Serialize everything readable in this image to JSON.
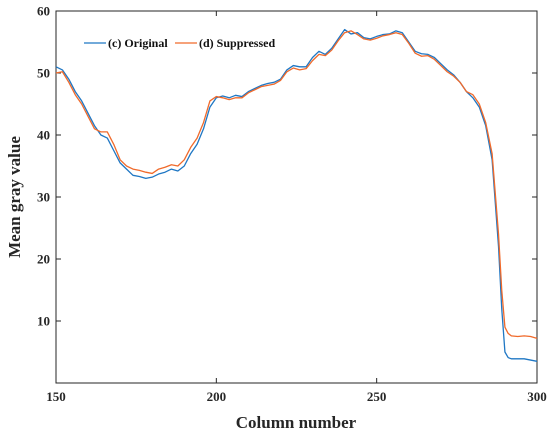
{
  "chart_data": {
    "type": "line",
    "title": "",
    "xlabel": "Column number",
    "ylabel": "Mean gray value",
    "xlim": [
      150,
      300
    ],
    "ylim": [
      0,
      60
    ],
    "xticks": [
      150,
      200,
      250,
      300
    ],
    "yticks": [
      10,
      20,
      30,
      40,
      50,
      60
    ],
    "grid": false,
    "legend_position": "top-left",
    "series": [
      {
        "name": "(c) Original",
        "color": "#1f77c4",
        "points": [
          [
            150,
            51
          ],
          [
            152,
            50.5
          ],
          [
            154,
            49
          ],
          [
            156,
            47
          ],
          [
            158,
            45.5
          ],
          [
            160,
            43.5
          ],
          [
            162,
            41.5
          ],
          [
            164,
            40
          ],
          [
            166,
            39.5
          ],
          [
            168,
            37.5
          ],
          [
            170,
            35.5
          ],
          [
            172,
            34.5
          ],
          [
            174,
            33.5
          ],
          [
            176,
            33.3
          ],
          [
            178,
            33
          ],
          [
            180,
            33.2
          ],
          [
            182,
            33.7
          ],
          [
            184,
            34
          ],
          [
            186,
            34.5
          ],
          [
            188,
            34.2
          ],
          [
            190,
            35
          ],
          [
            192,
            37
          ],
          [
            194,
            38.5
          ],
          [
            196,
            41
          ],
          [
            198,
            44.5
          ],
          [
            200,
            46
          ],
          [
            202,
            46.3
          ],
          [
            204,
            46
          ],
          [
            206,
            46.4
          ],
          [
            208,
            46.2
          ],
          [
            210,
            47
          ],
          [
            212,
            47.5
          ],
          [
            214,
            48
          ],
          [
            216,
            48.3
          ],
          [
            218,
            48.5
          ],
          [
            220,
            49
          ],
          [
            222,
            50.5
          ],
          [
            224,
            51.2
          ],
          [
            226,
            51
          ],
          [
            228,
            51
          ],
          [
            230,
            52.5
          ],
          [
            232,
            53.5
          ],
          [
            234,
            53
          ],
          [
            236,
            54
          ],
          [
            238,
            55.5
          ],
          [
            240,
            57
          ],
          [
            242,
            56.3
          ],
          [
            244,
            56.5
          ],
          [
            246,
            55.7
          ],
          [
            248,
            55.5
          ],
          [
            250,
            55.9
          ],
          [
            252,
            56.2
          ],
          [
            254,
            56.3
          ],
          [
            256,
            56.8
          ],
          [
            258,
            56.5
          ],
          [
            260,
            55
          ],
          [
            262,
            53.5
          ],
          [
            264,
            53.1
          ],
          [
            266,
            53
          ],
          [
            268,
            52.5
          ],
          [
            270,
            51.5
          ],
          [
            272,
            50.5
          ],
          [
            274,
            49.7
          ],
          [
            276,
            48.5
          ],
          [
            278,
            47
          ],
          [
            280,
            46
          ],
          [
            282,
            44.5
          ],
          [
            284,
            41.5
          ],
          [
            286,
            36
          ],
          [
            288,
            22
          ],
          [
            289,
            12
          ],
          [
            290,
            5
          ],
          [
            291,
            4.1
          ],
          [
            292,
            3.9
          ],
          [
            294,
            3.9
          ],
          [
            296,
            3.9
          ],
          [
            298,
            3.7
          ],
          [
            300,
            3.5
          ]
        ]
      },
      {
        "name": "(d) Suppressed",
        "color": "#f06a2b",
        "points": [
          [
            150,
            50
          ],
          [
            152,
            50.2
          ],
          [
            154,
            48.5
          ],
          [
            156,
            46.5
          ],
          [
            158,
            45
          ],
          [
            160,
            43
          ],
          [
            162,
            41
          ],
          [
            164,
            40.5
          ],
          [
            166,
            40.5
          ],
          [
            168,
            38.5
          ],
          [
            170,
            36
          ],
          [
            172,
            35
          ],
          [
            174,
            34.5
          ],
          [
            176,
            34.3
          ],
          [
            178,
            34
          ],
          [
            180,
            33.8
          ],
          [
            182,
            34.5
          ],
          [
            184,
            34.8
          ],
          [
            186,
            35.2
          ],
          [
            188,
            35
          ],
          [
            190,
            36
          ],
          [
            192,
            38
          ],
          [
            194,
            39.5
          ],
          [
            196,
            42
          ],
          [
            198,
            45.5
          ],
          [
            200,
            46.2
          ],
          [
            202,
            46
          ],
          [
            204,
            45.7
          ],
          [
            206,
            46
          ],
          [
            208,
            46
          ],
          [
            210,
            46.8
          ],
          [
            212,
            47.3
          ],
          [
            214,
            47.8
          ],
          [
            216,
            48
          ],
          [
            218,
            48.2
          ],
          [
            220,
            48.8
          ],
          [
            222,
            50.2
          ],
          [
            224,
            50.8
          ],
          [
            226,
            50.5
          ],
          [
            228,
            50.7
          ],
          [
            230,
            52
          ],
          [
            232,
            53
          ],
          [
            234,
            52.8
          ],
          [
            236,
            53.7
          ],
          [
            238,
            55.2
          ],
          [
            240,
            56.5
          ],
          [
            242,
            56.8
          ],
          [
            244,
            56.2
          ],
          [
            246,
            55.5
          ],
          [
            248,
            55.3
          ],
          [
            250,
            55.6
          ],
          [
            252,
            56
          ],
          [
            254,
            56.2
          ],
          [
            256,
            56.5
          ],
          [
            258,
            56.2
          ],
          [
            260,
            54.8
          ],
          [
            262,
            53.2
          ],
          [
            264,
            52.7
          ],
          [
            266,
            52.8
          ],
          [
            268,
            52.2
          ],
          [
            270,
            51.2
          ],
          [
            272,
            50.2
          ],
          [
            274,
            49.5
          ],
          [
            276,
            48.5
          ],
          [
            278,
            47
          ],
          [
            280,
            46.5
          ],
          [
            282,
            45
          ],
          [
            284,
            42
          ],
          [
            286,
            37
          ],
          [
            288,
            24
          ],
          [
            289,
            15
          ],
          [
            290,
            9
          ],
          [
            291,
            8
          ],
          [
            292,
            7.6
          ],
          [
            294,
            7.5
          ],
          [
            296,
            7.6
          ],
          [
            298,
            7.5
          ],
          [
            300,
            7.2
          ]
        ]
      }
    ]
  }
}
